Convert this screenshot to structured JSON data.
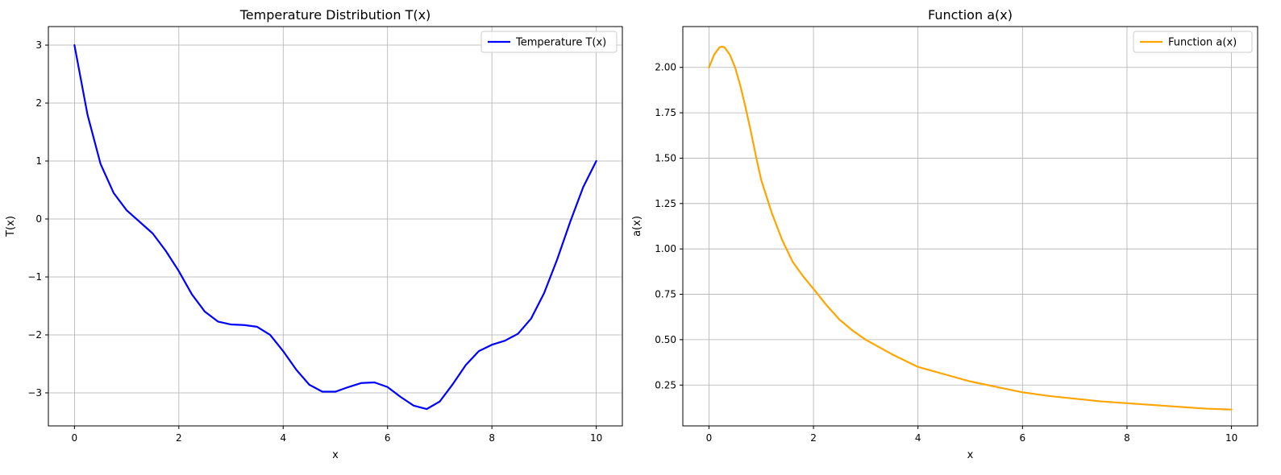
{
  "chart_data": [
    {
      "type": "line",
      "title": "Temperature Distribution T(x)",
      "xlabel": "x",
      "ylabel": "T(x)",
      "xlim": [
        -0.5,
        10.5
      ],
      "ylim": [
        -3.57,
        3.32
      ],
      "xticks": [
        0,
        2,
        4,
        6,
        8,
        10
      ],
      "xtick_labels": [
        "0",
        "2",
        "4",
        "6",
        "8",
        "10"
      ],
      "yticks": [
        -3,
        -2,
        -1,
        0,
        1,
        2,
        3
      ],
      "ytick_labels": [
        "−3",
        "−2",
        "−1",
        "0",
        "1",
        "2",
        "3"
      ],
      "grid": true,
      "legend": "top-right",
      "color": "#0000ff",
      "series": [
        {
          "name": "Temperature T(x)",
          "x": [
            0,
            0.25,
            0.5,
            0.75,
            1.0,
            1.25,
            1.5,
            1.75,
            2.0,
            2.25,
            2.5,
            2.75,
            3.0,
            3.25,
            3.5,
            3.75,
            4.0,
            4.25,
            4.5,
            4.75,
            5.0,
            5.25,
            5.5,
            5.75,
            6.0,
            6.25,
            6.5,
            6.75,
            7.0,
            7.25,
            7.5,
            7.75,
            8.0,
            8.25,
            8.5,
            8.75,
            9.0,
            9.25,
            9.5,
            9.75,
            10.0
          ],
          "y": [
            3.0,
            1.8,
            0.95,
            0.45,
            0.15,
            -0.05,
            -0.25,
            -0.55,
            -0.9,
            -1.3,
            -1.6,
            -1.77,
            -1.82,
            -1.83,
            -1.86,
            -2.0,
            -2.28,
            -2.6,
            -2.86,
            -2.98,
            -2.98,
            -2.9,
            -2.83,
            -2.82,
            -2.9,
            -3.07,
            -3.22,
            -3.28,
            -3.15,
            -2.85,
            -2.52,
            -2.28,
            -2.17,
            -2.1,
            -1.98,
            -1.72,
            -1.28,
            -0.7,
            -0.05,
            0.55,
            1.0
          ]
        }
      ]
    },
    {
      "type": "line",
      "title": "Function a(x)",
      "xlabel": "x",
      "ylabel": "a(x)",
      "xlim": [
        -0.5,
        10.5
      ],
      "ylim": [
        0.025,
        2.225
      ],
      "xticks": [
        0,
        2,
        4,
        6,
        8,
        10
      ],
      "xtick_labels": [
        "0",
        "2",
        "4",
        "6",
        "8",
        "10"
      ],
      "yticks": [
        0.25,
        0.5,
        0.75,
        1.0,
        1.25,
        1.5,
        1.75,
        2.0
      ],
      "ytick_labels": [
        "0.25",
        "0.50",
        "0.75",
        "1.00",
        "1.25",
        "1.50",
        "1.75",
        "2.00"
      ],
      "grid": true,
      "legend": "top-right",
      "color": "#ffa500",
      "series": [
        {
          "name": "Function a(x)",
          "x": [
            0,
            0.1,
            0.2,
            0.25,
            0.3,
            0.4,
            0.5,
            0.6,
            0.7,
            0.8,
            0.9,
            1.0,
            1.2,
            1.4,
            1.6,
            1.8,
            2.0,
            2.25,
            2.5,
            2.75,
            3.0,
            3.5,
            4.0,
            4.5,
            5.0,
            5.5,
            6.0,
            6.5,
            7.0,
            7.5,
            8.0,
            8.5,
            9.0,
            9.5,
            10.0
          ],
          "y": [
            2.0,
            2.07,
            2.11,
            2.115,
            2.11,
            2.07,
            2.0,
            1.9,
            1.78,
            1.65,
            1.51,
            1.38,
            1.2,
            1.05,
            0.93,
            0.85,
            0.78,
            0.69,
            0.61,
            0.55,
            0.5,
            0.42,
            0.35,
            0.31,
            0.27,
            0.24,
            0.21,
            0.19,
            0.175,
            0.16,
            0.15,
            0.14,
            0.13,
            0.12,
            0.115
          ]
        }
      ]
    }
  ]
}
